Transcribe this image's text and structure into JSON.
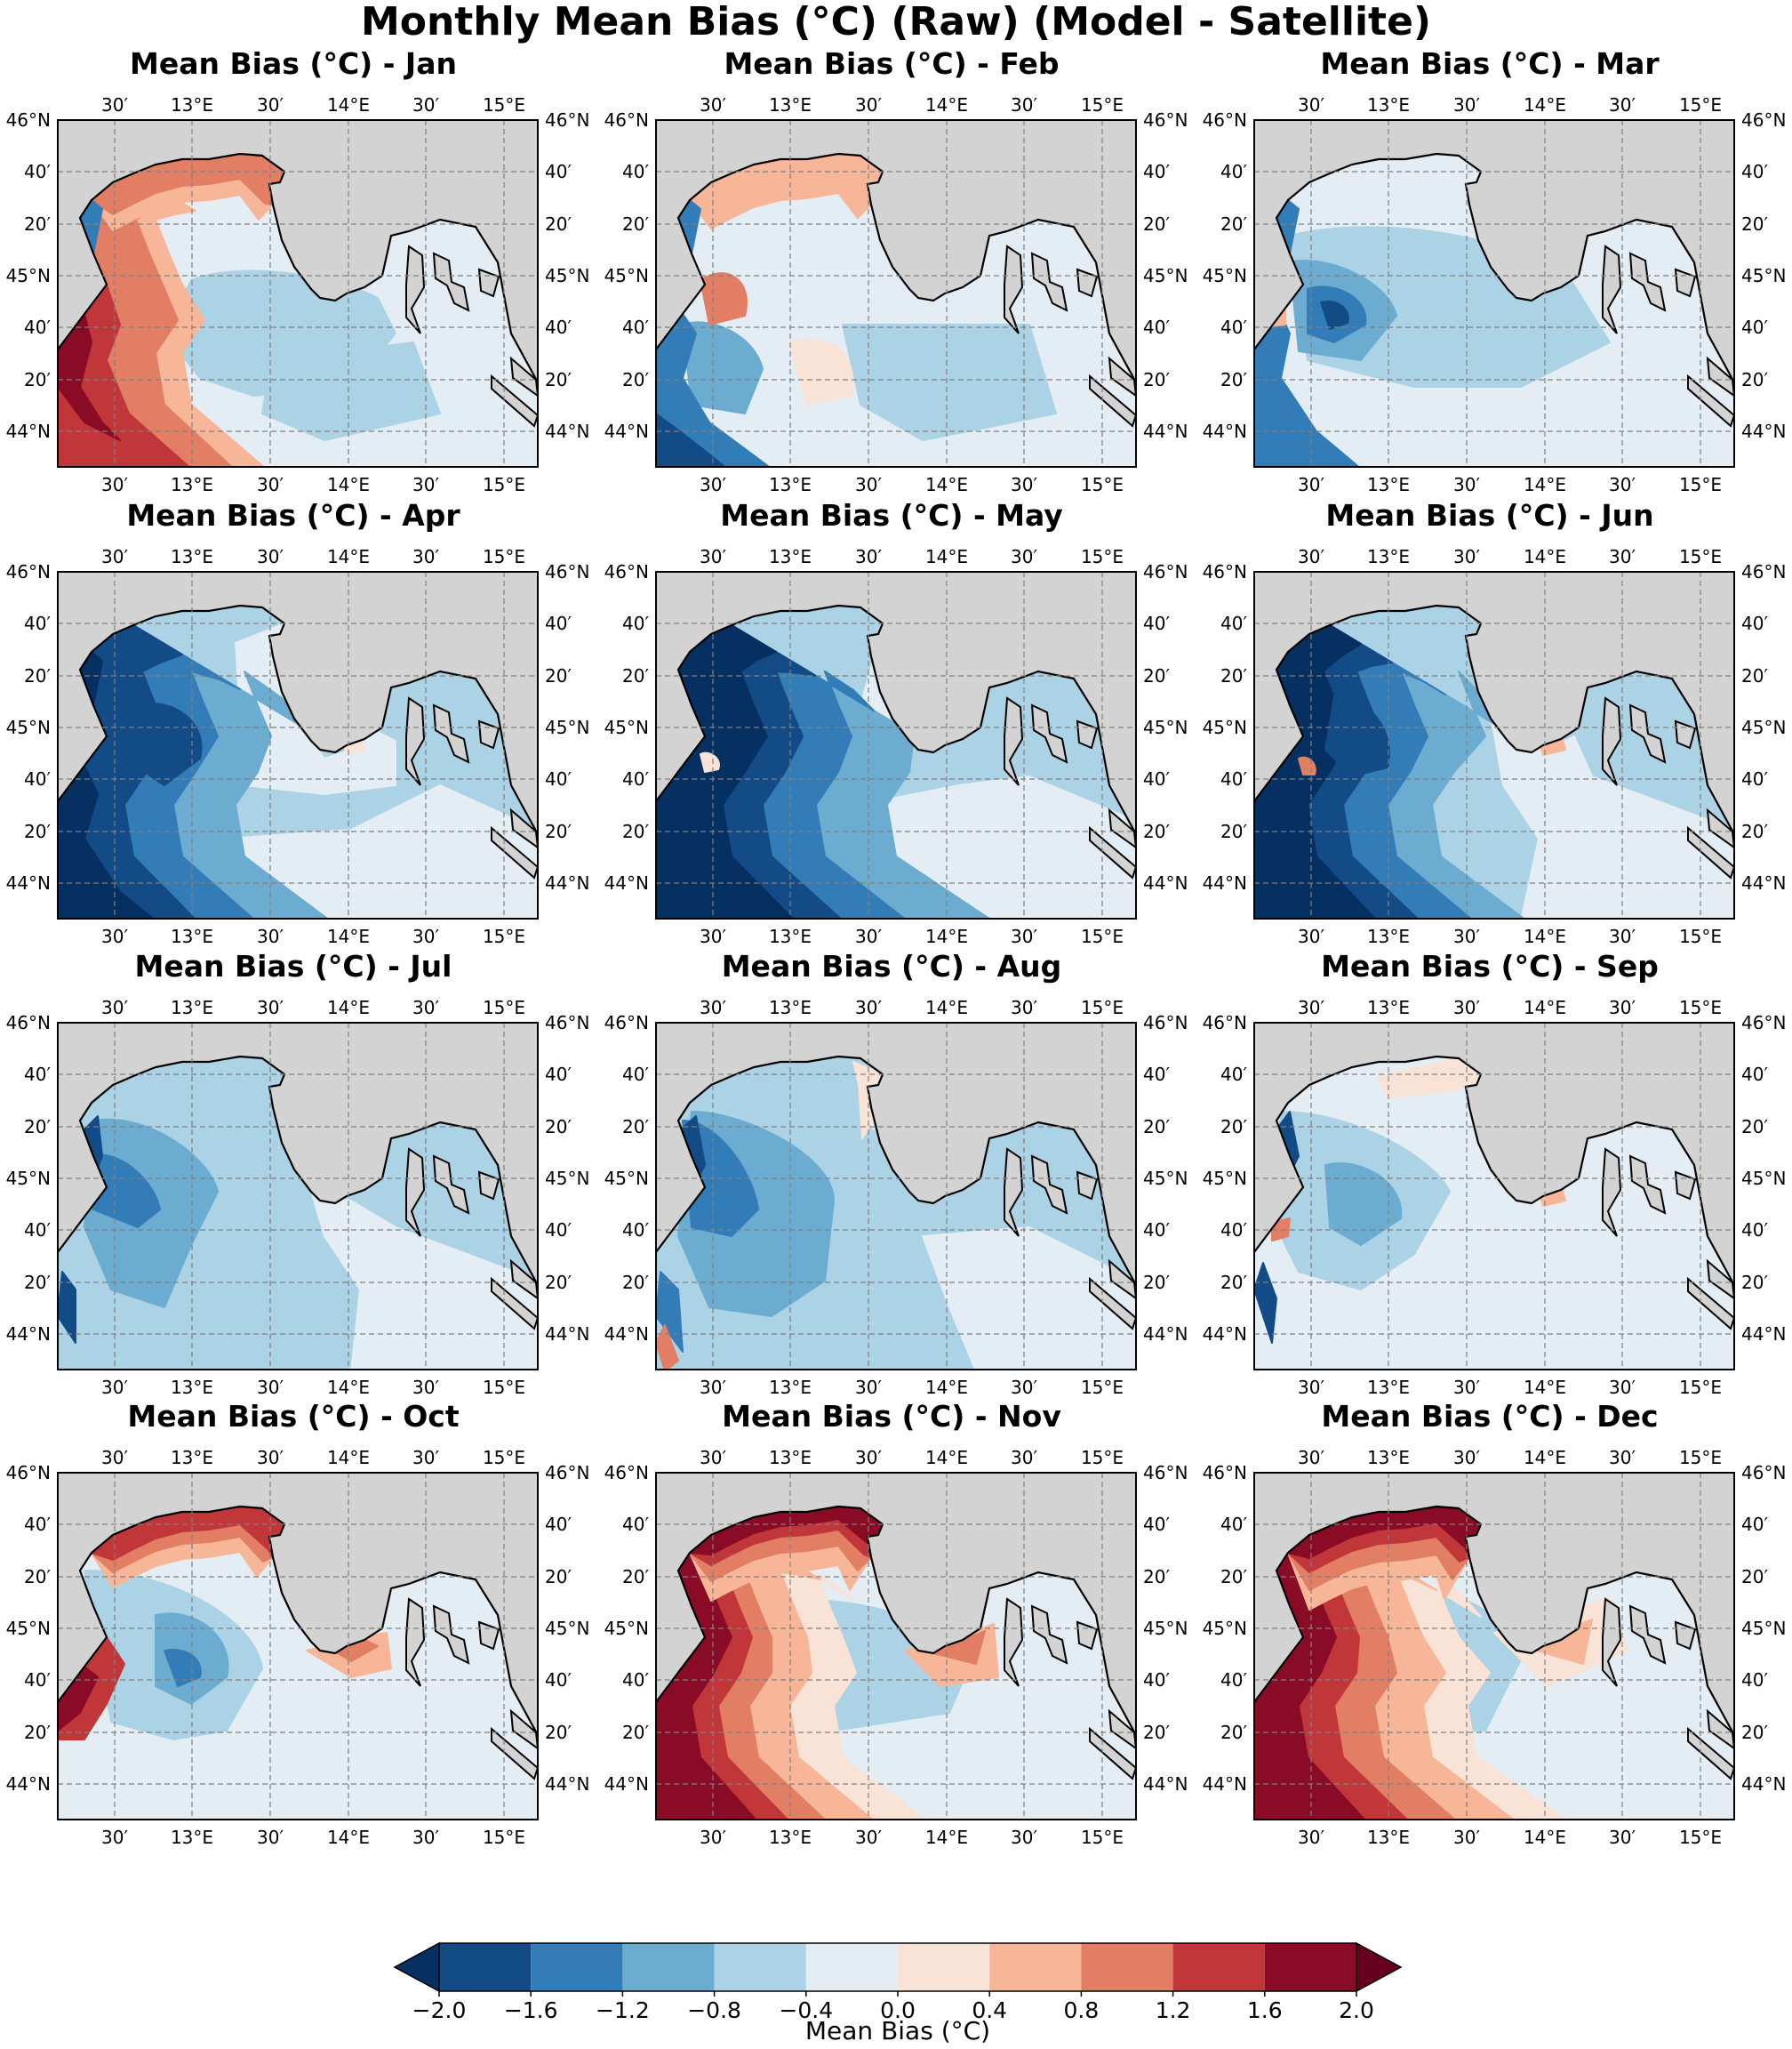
{
  "title": "Monthly Mean Bias (°C) (Raw) (Model - Satellite)",
  "panels": [
    {
      "month": "Jan",
      "title": "Mean Bias (°C) - Jan",
      "regime": "jan"
    },
    {
      "month": "Feb",
      "title": "Mean Bias (°C) - Feb",
      "regime": "feb"
    },
    {
      "month": "Mar",
      "title": "Mean Bias (°C) - Mar",
      "regime": "mar"
    },
    {
      "month": "Apr",
      "title": "Mean Bias (°C) - Apr",
      "regime": "apr"
    },
    {
      "month": "May",
      "title": "Mean Bias (°C) - May",
      "regime": "may"
    },
    {
      "month": "Jun",
      "title": "Mean Bias (°C) - Jun",
      "regime": "jun"
    },
    {
      "month": "Jul",
      "title": "Mean Bias (°C) - Jul",
      "regime": "jul"
    },
    {
      "month": "Aug",
      "title": "Mean Bias (°C) - Aug",
      "regime": "aug"
    },
    {
      "month": "Sep",
      "title": "Mean Bias (°C) - Sep",
      "regime": "sep"
    },
    {
      "month": "Oct",
      "title": "Mean Bias (°C) - Oct",
      "regime": "oct"
    },
    {
      "month": "Nov",
      "title": "Mean Bias (°C) - Nov",
      "regime": "nov"
    },
    {
      "month": "Dec",
      "title": "Mean Bias (°C) - Dec",
      "regime": "dec"
    }
  ],
  "axes": {
    "lon_ticks": [
      "30′",
      "13°E",
      "30′",
      "14°E",
      "30′",
      "15°E"
    ],
    "lat_ticks": [
      "46°N",
      "40′",
      "20′",
      "45°N",
      "40′",
      "20′",
      "44°N"
    ]
  },
  "colorbar": {
    "label": "Mean Bias (°C)",
    "ticks": [
      "−2.0",
      "−1.6",
      "−1.2",
      "−0.8",
      "−0.4",
      "0.0",
      "0.4",
      "0.8",
      "1.2",
      "1.6",
      "2.0"
    ],
    "colors": [
      "#053061",
      "#134b87",
      "#327cb7",
      "#6bacd0",
      "#abd2e5",
      "#e3edf3",
      "#f9e3d6",
      "#f7b698",
      "#e27e63",
      "#c13639",
      "#8a0b25",
      "#67001f"
    ],
    "extend": "both"
  },
  "colors": {
    "land": "#d3d3d3",
    "coastline": "#000000",
    "gridlines": "#808080"
  }
}
